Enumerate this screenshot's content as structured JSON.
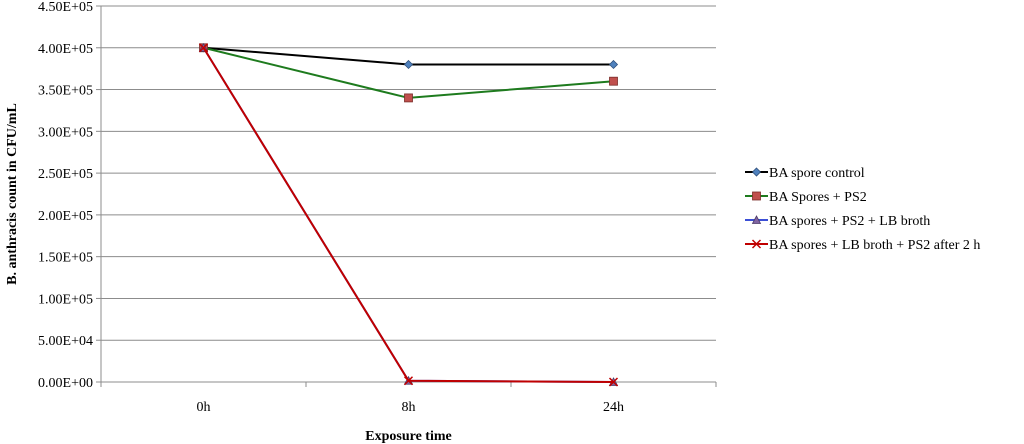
{
  "chart_data": {
    "type": "line",
    "title": "",
    "xlabel": "Exposure time",
    "ylabel": "B. anthracis count in CFU/mL",
    "categories": [
      "0h",
      "8h",
      "24h"
    ],
    "ylim": [
      0,
      450000
    ],
    "yticks": [
      {
        "value": 0,
        "label": "0.00E+00"
      },
      {
        "value": 50000,
        "label": "5.00E+04"
      },
      {
        "value": 100000,
        "label": "1.00E+05"
      },
      {
        "value": 150000,
        "label": "1.50E+05"
      },
      {
        "value": 200000,
        "label": "2.00E+05"
      },
      {
        "value": 250000,
        "label": "2.50E+05"
      },
      {
        "value": 300000,
        "label": "3.00E+05"
      },
      {
        "value": 350000,
        "label": "3.50E+05"
      },
      {
        "value": 400000,
        "label": "4.00E+05"
      },
      {
        "value": 450000,
        "label": "4.50E+05"
      }
    ],
    "grid": "horizontal",
    "legend_position": "right",
    "series": [
      {
        "name": "BA spore control",
        "values": [
          400000,
          380000,
          380000
        ],
        "color": "#000000",
        "marker": "diamond",
        "marker_color": "#4F81BD"
      },
      {
        "name": "BA Spores + PS2",
        "values": [
          400000,
          340000,
          360000
        ],
        "color": "#1E7B1E",
        "marker": "square",
        "marker_color": "#C0504D"
      },
      {
        "name": "BA spores + PS2 + LB  broth",
        "values": [
          400000,
          1500,
          0
        ],
        "color": "#3B4FD6",
        "marker": "triangle",
        "marker_color": "#8064A2"
      },
      {
        "name": "BA spores + LB broth + PS2 after 2 h",
        "values": [
          400000,
          1500,
          0
        ],
        "color": "#C00000",
        "marker": "x",
        "marker_color": "#C00000"
      }
    ]
  }
}
